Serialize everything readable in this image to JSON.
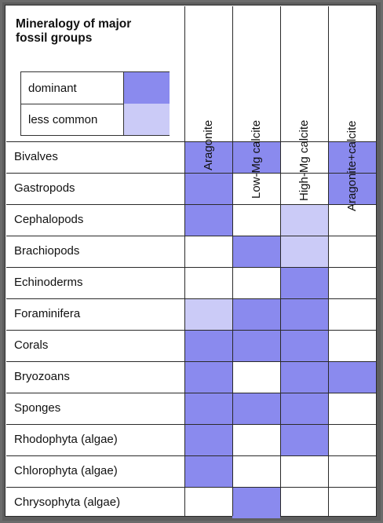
{
  "title": "Mineralogy of major\nfossil groups",
  "legend": [
    {
      "label": "dominant",
      "color": "#8a8aee"
    },
    {
      "label": "less common",
      "color": "#cbcbf7"
    }
  ],
  "columns": [
    "Aragonite",
    "Low-Mg calcite",
    "High-Mg calcite",
    "Aragonite+calcite"
  ],
  "rows": [
    {
      "label": "Bivalves",
      "cells": [
        "d",
        "d",
        "",
        "d"
      ]
    },
    {
      "label": "Gastropods",
      "cells": [
        "d",
        "",
        "",
        "d"
      ]
    },
    {
      "label": "Cephalopods",
      "cells": [
        "d",
        "",
        "l",
        ""
      ]
    },
    {
      "label": "Brachiopods",
      "cells": [
        "",
        "d",
        "l",
        ""
      ]
    },
    {
      "label": "Echinoderms",
      "cells": [
        "",
        "",
        "d",
        ""
      ]
    },
    {
      "label": "Foraminifera",
      "cells": [
        "l",
        "d",
        "d",
        ""
      ]
    },
    {
      "label": "Corals",
      "cells": [
        "d",
        "d",
        "d",
        ""
      ]
    },
    {
      "label": "Bryozoans",
      "cells": [
        "d",
        "",
        "d",
        "d"
      ]
    },
    {
      "label": "Sponges",
      "cells": [
        "d",
        "d",
        "d",
        ""
      ]
    },
    {
      "label": "Rhodophyta (algae)",
      "cells": [
        "d",
        "",
        "d",
        ""
      ]
    },
    {
      "label": "Chlorophyta (algae)",
      "cells": [
        "d",
        "",
        "",
        ""
      ]
    },
    {
      "label": "Chrysophyta (algae)",
      "cells": [
        "",
        "d",
        "",
        ""
      ]
    }
  ],
  "colors": {
    "dominant": "#8a8aee",
    "less_common": "#cbcbf7",
    "grid": "#2a2a2a"
  }
}
